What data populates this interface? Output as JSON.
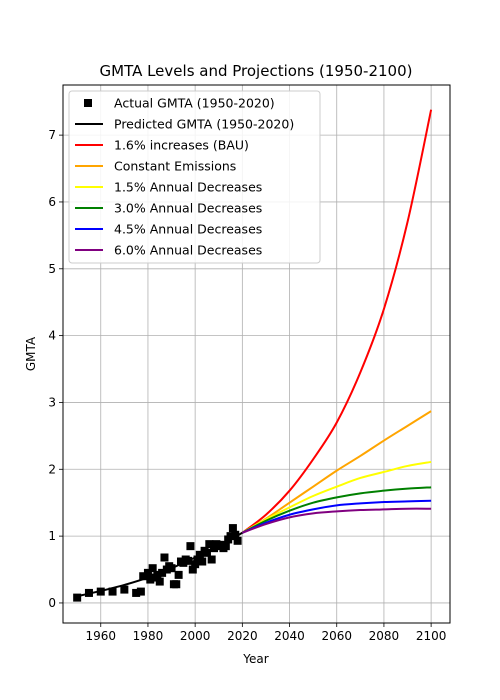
{
  "chart_data": {
    "type": "line",
    "title": "GMTA Levels and Projections (1950-2100)",
    "xlabel": "Year",
    "ylabel": "GMTA",
    "xlim": [
      1944,
      2108
    ],
    "ylim": [
      -0.3,
      7.75
    ],
    "x_ticks": [
      1960,
      1980,
      2000,
      2020,
      2040,
      2060,
      2080,
      2100
    ],
    "y_ticks": [
      0,
      1,
      2,
      3,
      4,
      5,
      6,
      7
    ],
    "grid": true,
    "legend_position": "top-left",
    "series": [
      {
        "name": "Actual GMTA (1950-2020)",
        "kind": "scatter",
        "color": "#000000",
        "marker": "square",
        "x": [
          1950,
          1955,
          1960,
          1965,
          1970,
          1975,
          1977,
          1978,
          1980,
          1981,
          1982,
          1983,
          1984,
          1985,
          1986,
          1987,
          1988,
          1989,
          1990,
          1991,
          1992,
          1993,
          1994,
          1995,
          1996,
          1997,
          1998,
          1999,
          2000,
          2001,
          2002,
          2003,
          2004,
          2005,
          2006,
          2007,
          2008,
          2009,
          2010,
          2011,
          2012,
          2013,
          2014,
          2015,
          2016,
          2017,
          2018
        ],
        "y": [
          0.08,
          0.15,
          0.17,
          0.17,
          0.2,
          0.15,
          0.17,
          0.4,
          0.45,
          0.35,
          0.52,
          0.38,
          0.42,
          0.32,
          0.45,
          0.68,
          0.5,
          0.55,
          0.52,
          0.28,
          0.28,
          0.42,
          0.62,
          0.6,
          0.65,
          0.63,
          0.85,
          0.5,
          0.58,
          0.65,
          0.72,
          0.62,
          0.78,
          0.75,
          0.88,
          0.65,
          0.82,
          0.88,
          0.85,
          0.87,
          0.82,
          0.85,
          0.95,
          1.0,
          1.12,
          1.02,
          0.93
        ]
      },
      {
        "name": "Predicted GMTA (1950-2020)",
        "kind": "line",
        "color": "#000000",
        "x": [
          1950,
          1960,
          1970,
          1980,
          1990,
          2000,
          2010,
          2020
        ],
        "y": [
          0.1,
          0.18,
          0.27,
          0.38,
          0.52,
          0.68,
          0.85,
          1.05
        ]
      },
      {
        "name": "1.6% increases (BAU)",
        "kind": "line",
        "color": "#ff0000",
        "x": [
          2020,
          2030,
          2040,
          2050,
          2060,
          2070,
          2080,
          2090,
          2100
        ],
        "y": [
          1.05,
          1.32,
          1.68,
          2.15,
          2.7,
          3.45,
          4.4,
          5.7,
          7.38
        ]
      },
      {
        "name": "Constant Emissions",
        "kind": "line",
        "color": "#ffa500",
        "x": [
          2020,
          2030,
          2040,
          2050,
          2060,
          2070,
          2080,
          2090,
          2100
        ],
        "y": [
          1.05,
          1.26,
          1.5,
          1.74,
          1.98,
          2.2,
          2.43,
          2.65,
          2.87
        ]
      },
      {
        "name": "1.5% Annual Decreases",
        "kind": "line",
        "color": "#ffff00",
        "x": [
          2020,
          2030,
          2040,
          2050,
          2060,
          2070,
          2080,
          2090,
          2100
        ],
        "y": [
          1.05,
          1.25,
          1.43,
          1.6,
          1.74,
          1.87,
          1.96,
          2.05,
          2.11
        ]
      },
      {
        "name": "3.0% Annual Decreases",
        "kind": "line",
        "color": "#008000",
        "x": [
          2020,
          2030,
          2040,
          2050,
          2060,
          2070,
          2080,
          2090,
          2100
        ],
        "y": [
          1.05,
          1.23,
          1.38,
          1.5,
          1.58,
          1.64,
          1.68,
          1.71,
          1.73
        ]
      },
      {
        "name": "4.5% Annual Decreases",
        "kind": "line",
        "color": "#0000ff",
        "x": [
          2020,
          2030,
          2040,
          2050,
          2060,
          2070,
          2080,
          2090,
          2100
        ],
        "y": [
          1.05,
          1.2,
          1.32,
          1.4,
          1.46,
          1.49,
          1.51,
          1.52,
          1.53
        ]
      },
      {
        "name": "6.0% Annual Decreases",
        "kind": "line",
        "color": "#800080",
        "x": [
          2020,
          2030,
          2040,
          2050,
          2060,
          2070,
          2080,
          2090,
          2100
        ],
        "y": [
          1.05,
          1.18,
          1.28,
          1.34,
          1.37,
          1.39,
          1.4,
          1.41,
          1.41
        ]
      }
    ]
  }
}
